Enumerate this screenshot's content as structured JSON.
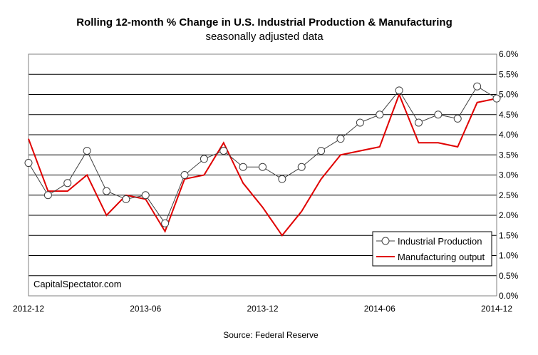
{
  "chart_data": {
    "type": "line",
    "title": "Rolling 12-month % Change in U.S. Industrial Production & Manufacturing",
    "subtitle": "seasonally adjusted data",
    "source": "Source: Federal Reserve",
    "watermark": "CapitalSpectator.com",
    "x_tick_labels": [
      "2012-12",
      "2013-06",
      "2013-12",
      "2014-06",
      "2014-12"
    ],
    "x": [
      "2012-12",
      "2013-01",
      "2013-02",
      "2013-03",
      "2013-04",
      "2013-05",
      "2013-06",
      "2013-07",
      "2013-08",
      "2013-09",
      "2013-10",
      "2013-11",
      "2013-12",
      "2014-01",
      "2014-02",
      "2014-03",
      "2014-04",
      "2014-05",
      "2014-06",
      "2014-07",
      "2014-08",
      "2014-09",
      "2014-10",
      "2014-11",
      "2014-12"
    ],
    "y_tick_labels": [
      "0.0%",
      "0.5%",
      "1.0%",
      "1.5%",
      "2.0%",
      "2.5%",
      "3.0%",
      "3.5%",
      "4.0%",
      "4.5%",
      "5.0%",
      "5.5%",
      "6.0%"
    ],
    "ylim": [
      0,
      6
    ],
    "grid": true,
    "legend_position": "bottom-right",
    "series": [
      {
        "name": "Industrial Production",
        "color": "#404040",
        "marker": "circle",
        "values": [
          3.3,
          2.5,
          2.8,
          3.6,
          2.6,
          2.4,
          2.5,
          1.8,
          3.0,
          3.4,
          3.6,
          3.2,
          3.2,
          2.9,
          3.2,
          3.6,
          3.9,
          4.3,
          4.5,
          5.1,
          4.3,
          4.5,
          4.4,
          5.2,
          4.9
        ]
      },
      {
        "name": "Manufacturing output",
        "color": "#e00000",
        "marker": "none",
        "values": [
          3.9,
          2.6,
          2.6,
          3.0,
          2.0,
          2.5,
          2.4,
          1.6,
          2.9,
          3.0,
          3.8,
          2.8,
          2.2,
          1.5,
          2.1,
          2.9,
          3.5,
          3.6,
          3.7,
          5.0,
          3.8,
          3.8,
          3.7,
          4.8,
          4.9
        ]
      }
    ]
  }
}
